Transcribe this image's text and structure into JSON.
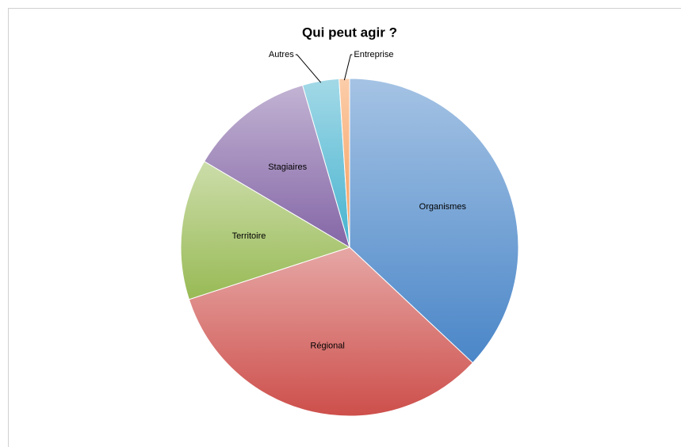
{
  "chart_data": {
    "type": "pie",
    "title": "Qui peut agir ?",
    "categories": [
      "Organismes",
      "Régional",
      "Territoire",
      "Stagiaires",
      "Autres",
      "Entreprise"
    ],
    "values": [
      37,
      33,
      13.5,
      12,
      3.5,
      1
    ],
    "colors": [
      "#4a86c8",
      "#cd4f4b",
      "#98ba55",
      "#8466a6",
      "#46b3cf",
      "#f79a55"
    ]
  }
}
